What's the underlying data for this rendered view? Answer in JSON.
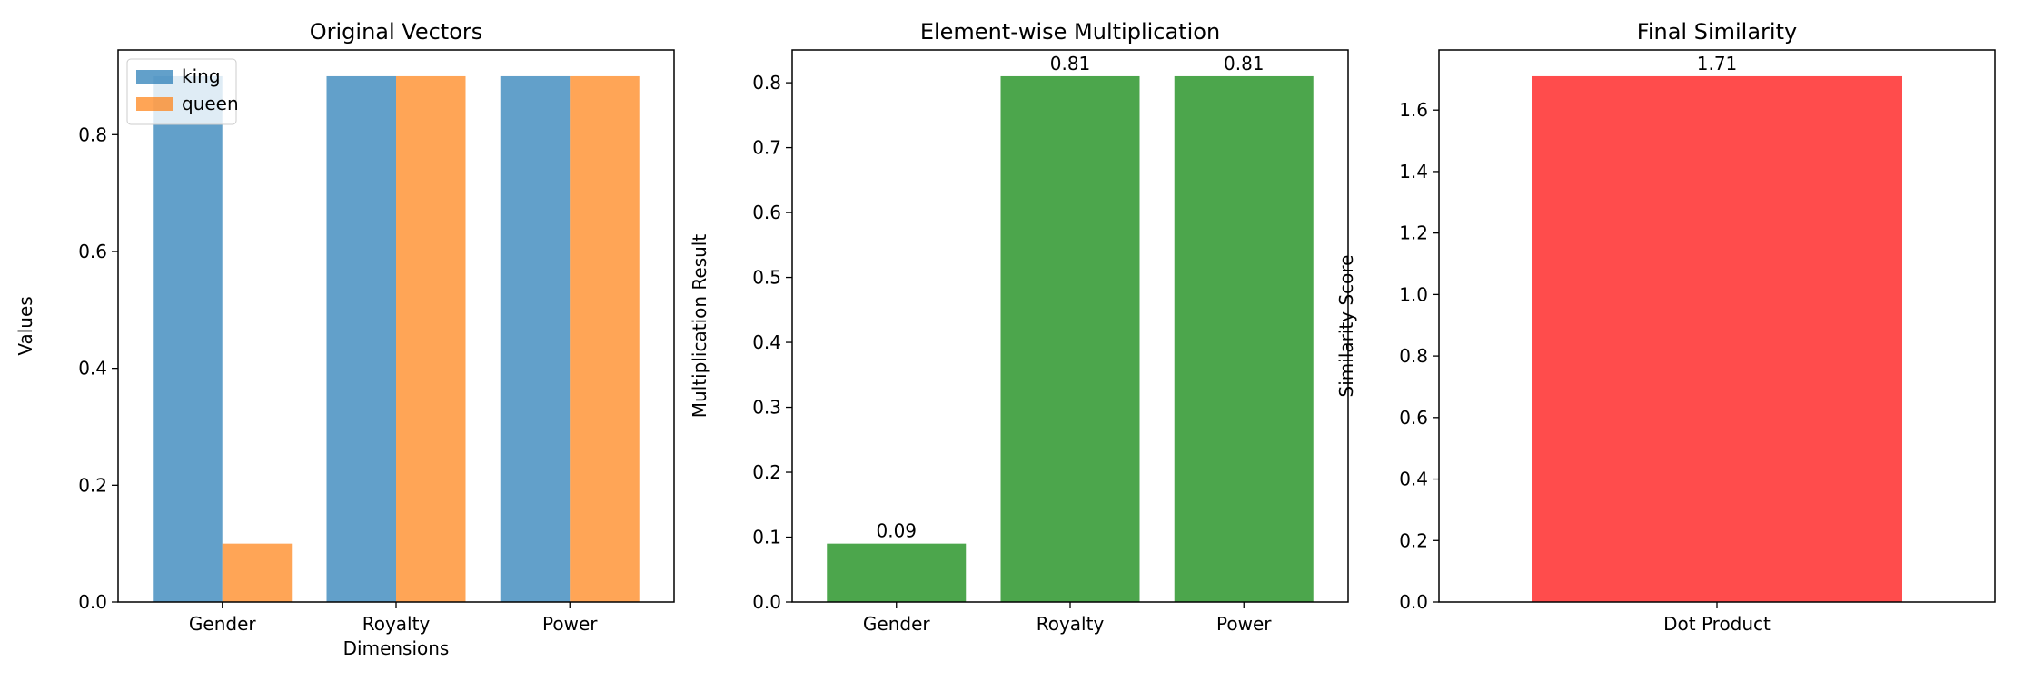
{
  "chart_data": [
    {
      "type": "bar",
      "title": "Original Vectors",
      "xlabel": "Dimensions",
      "ylabel": "Values",
      "categories": [
        "Gender",
        "Royalty",
        "Power"
      ],
      "series": [
        {
          "name": "king",
          "values": [
            0.9,
            0.9,
            0.9
          ],
          "color": "#1f77b4",
          "opacity": 0.7
        },
        {
          "name": "queen",
          "values": [
            0.1,
            0.9,
            0.9
          ],
          "color": "#ff7f0e",
          "opacity": 0.7
        }
      ],
      "ylim": [
        0,
        0.945
      ],
      "yticks": [
        0.0,
        0.2,
        0.4,
        0.6,
        0.8
      ],
      "ytick_decimals": 1,
      "legend": "top-left",
      "grid": false
    },
    {
      "type": "bar",
      "title": "Element-wise Multiplication",
      "xlabel": "",
      "ylabel": "Multiplication Result",
      "categories": [
        "Gender",
        "Royalty",
        "Power"
      ],
      "values": [
        0.09,
        0.81,
        0.81
      ],
      "data_labels": [
        "0.09",
        "0.81",
        "0.81"
      ],
      "color": "#008000",
      "opacity": 0.7,
      "ylim": [
        0,
        0.8505
      ],
      "yticks": [
        0.0,
        0.1,
        0.2,
        0.3,
        0.4,
        0.5,
        0.6,
        0.7,
        0.8
      ],
      "ytick_decimals": 1,
      "grid": false
    },
    {
      "type": "bar",
      "title": "Final Similarity",
      "xlabel": "",
      "ylabel": "Similarity Score",
      "categories": [
        "Dot Product"
      ],
      "values": [
        1.71
      ],
      "data_labels": [
        "1.71"
      ],
      "color": "#ff0000",
      "opacity": 0.7,
      "ylim": [
        0,
        1.7955
      ],
      "yticks": [
        0.0,
        0.2,
        0.4,
        0.6,
        0.8,
        1.0,
        1.2,
        1.4,
        1.6
      ],
      "ytick_decimals": 1,
      "grid": false
    }
  ]
}
